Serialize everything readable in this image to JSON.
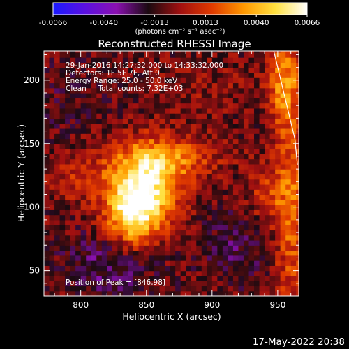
{
  "chart_data": {
    "type": "heatmap",
    "title": "Reconstructed RHESSI Image",
    "colorbar": {
      "ticks": [
        "-0.0066",
        "-0.0040",
        "-0.0013",
        "0.0013",
        "0.0040",
        "0.0066"
      ],
      "unit_label": "(photons cm⁻² s⁻¹ asec⁻²)",
      "vmin": -0.0066,
      "vmax": 0.0066,
      "colormap": [
        "#1a1aff",
        "#5a10e0",
        "#8a10b0",
        "#1a0a10",
        "#a01010",
        "#e03a00",
        "#ff9800",
        "#ffe040",
        "#ffffff"
      ]
    },
    "xlabel": "Heliocentric X (arcsec)",
    "ylabel": "Heliocentric Y (arcsec)",
    "xlim": [
      772,
      966
    ],
    "ylim": [
      30,
      223
    ],
    "xticks": [
      800,
      850,
      900,
      950
    ],
    "yticks": [
      50,
      100,
      150,
      200
    ],
    "annotations": [
      "29-Jan-2016 14:27:32.000 to 14:33:32.000",
      "Detectors: 1F 5F 7F, Att 0",
      "Energy Range: 25.0 - 50.0 keV",
      "Clean     Total counts: 7.32E+03"
    ],
    "peak_label": "Position of Peak = [846,98]",
    "peak": [
      846,
      98
    ],
    "sources": [
      {
        "x": 848,
        "y": 115,
        "sx": 18,
        "sy": 22,
        "amp": 0.0068
      },
      {
        "x": 838,
        "y": 92,
        "sx": 14,
        "sy": 16,
        "amp": 0.004
      },
      {
        "x": 870,
        "y": 138,
        "sx": 24,
        "sy": 12,
        "amp": 0.0028
      },
      {
        "x": 800,
        "y": 125,
        "sx": 18,
        "sy": 14,
        "amp": 0.0016
      },
      {
        "x": 955,
        "y": 200,
        "sx": 8,
        "sy": 22,
        "amp": 0.0036
      },
      {
        "x": 960,
        "y": 100,
        "sx": 10,
        "sy": 60,
        "amp": 0.0032
      },
      {
        "x": 940,
        "y": 110,
        "sx": 10,
        "sy": 14,
        "amp": 0.0018
      },
      {
        "x": 900,
        "y": 195,
        "sx": 30,
        "sy": 14,
        "amp": 0.0006
      },
      {
        "x": 820,
        "y": 55,
        "sx": 25,
        "sy": 18,
        "amp": -0.0016
      },
      {
        "x": 920,
        "y": 70,
        "sx": 22,
        "sy": 20,
        "amp": -0.0012
      },
      {
        "x": 790,
        "y": 185,
        "sx": 20,
        "sy": 20,
        "amp": -0.0006
      }
    ],
    "limb_line": [
      [
        947,
        223
      ],
      [
        963,
        154
      ],
      [
        965,
        133
      ]
    ]
  },
  "timestamp": "17-May-2022 20:38"
}
